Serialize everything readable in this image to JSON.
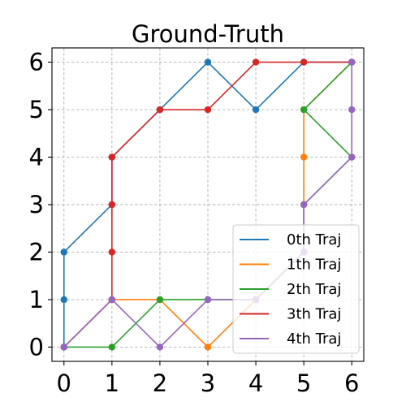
{
  "chart_data": {
    "type": "line",
    "title": "Ground-Truth",
    "xlabel": "",
    "ylabel": "",
    "xlim": [
      -0.25,
      6.25
    ],
    "ylim": [
      -0.3,
      6.3
    ],
    "xticks": [
      0,
      1,
      2,
      3,
      4,
      5,
      6
    ],
    "yticks": [
      0,
      1,
      2,
      3,
      4,
      5,
      6
    ],
    "grid": true,
    "legend_position": "lower-right",
    "series": [
      {
        "name": "0th Traj",
        "color": "#1f77b4",
        "points": [
          [
            0,
            0
          ],
          [
            0,
            1
          ],
          [
            0,
            2
          ],
          [
            1,
            3
          ],
          [
            1,
            4
          ],
          [
            2,
            5
          ],
          [
            3,
            6
          ],
          [
            4,
            5
          ],
          [
            5,
            6
          ],
          [
            6,
            6
          ]
        ]
      },
      {
        "name": "1th Traj",
        "color": "#ff7f0e",
        "points": [
          [
            0,
            0
          ],
          [
            1,
            1
          ],
          [
            2,
            1
          ],
          [
            3,
            0
          ],
          [
            4,
            1
          ],
          [
            5,
            2
          ],
          [
            5,
            3
          ],
          [
            5,
            4
          ],
          [
            5,
            5
          ],
          [
            6,
            6
          ]
        ]
      },
      {
        "name": "2th Traj",
        "color": "#2ca02c",
        "points": [
          [
            0,
            0
          ],
          [
            1,
            0
          ],
          [
            2,
            1
          ],
          [
            3,
            1
          ],
          [
            4,
            1
          ],
          [
            5,
            2
          ],
          [
            5,
            3
          ],
          [
            6,
            4
          ],
          [
            5,
            5
          ],
          [
            6,
            6
          ]
        ]
      },
      {
        "name": "3th Traj",
        "color": "#d62728",
        "points": [
          [
            0,
            0
          ],
          [
            1,
            1
          ],
          [
            1,
            2
          ],
          [
            1,
            3
          ],
          [
            1,
            4
          ],
          [
            2,
            5
          ],
          [
            3,
            5
          ],
          [
            4,
            6
          ],
          [
            5,
            6
          ],
          [
            6,
            6
          ]
        ]
      },
      {
        "name": "4th Traj",
        "color": "#9467bd",
        "points": [
          [
            0,
            0
          ],
          [
            1,
            1
          ],
          [
            2,
            0
          ],
          [
            3,
            1
          ],
          [
            4,
            1
          ],
          [
            5,
            2
          ],
          [
            5,
            3
          ],
          [
            6,
            4
          ],
          [
            6,
            5
          ],
          [
            6,
            6
          ]
        ]
      }
    ]
  }
}
